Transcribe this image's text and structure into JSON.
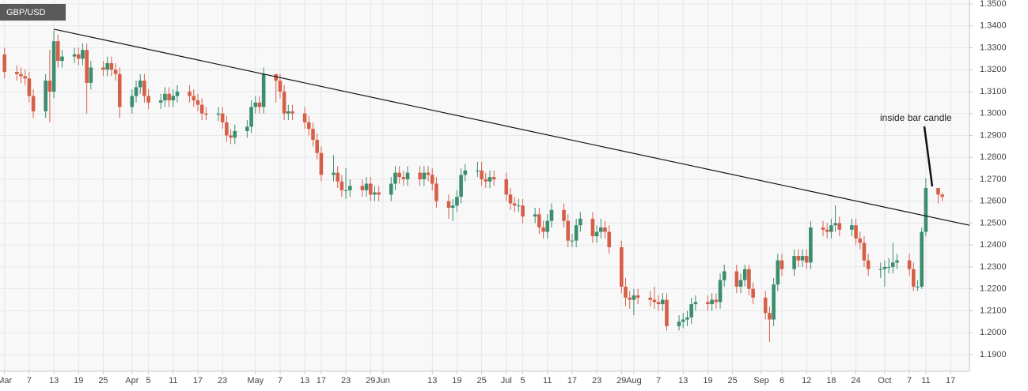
{
  "chart_data": {
    "type": "candlestick",
    "title": "GBP/USD",
    "annotation": "inside bar  candle",
    "up_color": "#3a8d6e",
    "down_color": "#d65f48",
    "grid": true,
    "xlim": [
      -1.1,
      234.6
    ],
    "ylim": [
      1.1824,
      1.3518
    ],
    "xticks": [
      {
        "value": 0,
        "label": "Mar"
      },
      {
        "value": 6,
        "label": "7"
      },
      {
        "value": 12,
        "label": "13"
      },
      {
        "value": 18,
        "label": "19"
      },
      {
        "value": 24,
        "label": "25"
      },
      {
        "value": 31,
        "label": "Apr"
      },
      {
        "value": 35,
        "label": "5"
      },
      {
        "value": 41,
        "label": "11"
      },
      {
        "value": 47,
        "label": "17"
      },
      {
        "value": 53,
        "label": "23"
      },
      {
        "value": 61,
        "label": "May"
      },
      {
        "value": 67,
        "label": "7"
      },
      {
        "value": 73,
        "label": "13"
      },
      {
        "value": 77,
        "label": "17"
      },
      {
        "value": 83,
        "label": "23"
      },
      {
        "value": 89,
        "label": "29"
      },
      {
        "value": 92,
        "label": "Jun"
      },
      {
        "value": 104,
        "label": "13"
      },
      {
        "value": 110,
        "label": "19"
      },
      {
        "value": 116,
        "label": "25"
      },
      {
        "value": 122,
        "label": "Jul"
      },
      {
        "value": 126,
        "label": "5"
      },
      {
        "value": 132,
        "label": "11"
      },
      {
        "value": 138,
        "label": "17"
      },
      {
        "value": 144,
        "label": "23"
      },
      {
        "value": 150,
        "label": "29"
      },
      {
        "value": 153,
        "label": "Aug"
      },
      {
        "value": 159,
        "label": "7"
      },
      {
        "value": 165,
        "label": "13"
      },
      {
        "value": 171,
        "label": "19"
      },
      {
        "value": 177,
        "label": "25"
      },
      {
        "value": 184,
        "label": "Sep"
      },
      {
        "value": 189,
        "label": "6"
      },
      {
        "value": 195,
        "label": "12"
      },
      {
        "value": 201,
        "label": "18"
      },
      {
        "value": 207,
        "label": "24"
      },
      {
        "value": 214,
        "label": "Oct"
      },
      {
        "value": 220,
        "label": "7"
      },
      {
        "value": 224,
        "label": "11"
      },
      {
        "value": 230,
        "label": "17"
      }
    ],
    "yticks": [
      {
        "value": 1.35,
        "label": "1.3500"
      },
      {
        "value": 1.34,
        "label": "1.3400"
      },
      {
        "value": 1.33,
        "label": "1.3300"
      },
      {
        "value": 1.32,
        "label": "1.3200"
      },
      {
        "value": 1.31,
        "label": "1.3100"
      },
      {
        "value": 1.3,
        "label": "1.3000"
      },
      {
        "value": 1.29,
        "label": "1.2900"
      },
      {
        "value": 1.28,
        "label": "1.2800"
      },
      {
        "value": 1.27,
        "label": "1.2700"
      },
      {
        "value": 1.26,
        "label": "1.2600"
      },
      {
        "value": 1.25,
        "label": "1.2500"
      },
      {
        "value": 1.24,
        "label": "1.2400"
      },
      {
        "value": 1.23,
        "label": "1.2300"
      },
      {
        "value": 1.22,
        "label": "1.2200"
      },
      {
        "value": 1.21,
        "label": "1.2100"
      },
      {
        "value": 1.2,
        "label": "1.2000"
      },
      {
        "value": 1.19,
        "label": "1.1900"
      }
    ],
    "trendline": {
      "x": [
        12,
        234.6
      ],
      "y": [
        1.3385,
        1.249
      ]
    },
    "x": [
      0,
      3,
      4,
      5,
      6,
      7,
      10,
      11,
      12,
      13,
      14,
      17,
      18,
      19,
      20,
      21,
      24,
      25,
      26,
      27,
      28,
      31,
      32,
      33,
      34,
      35,
      38,
      39,
      40,
      41,
      42,
      45,
      46,
      47,
      48,
      49,
      52,
      53,
      54,
      55,
      56,
      59,
      60,
      61,
      62,
      63,
      66,
      67,
      68,
      69,
      70,
      73,
      74,
      75,
      76,
      77,
      80,
      81,
      82,
      83,
      84,
      87,
      88,
      89,
      90,
      91,
      94,
      95,
      96,
      97,
      98,
      101,
      102,
      103,
      104,
      105,
      108,
      109,
      110,
      111,
      112,
      115,
      116,
      117,
      118,
      119,
      122,
      123,
      124,
      125,
      126,
      129,
      130,
      131,
      132,
      133,
      136,
      137,
      138,
      139,
      140,
      143,
      144,
      145,
      146,
      147,
      150,
      151,
      152,
      153,
      154,
      157,
      158,
      159,
      160,
      161,
      164,
      165,
      166,
      167,
      168,
      171,
      172,
      173,
      174,
      175,
      178,
      179,
      180,
      181,
      182,
      185,
      186,
      187,
      188,
      189,
      192,
      193,
      194,
      195,
      196,
      199,
      200,
      201,
      202,
      203,
      206,
      207,
      208,
      209,
      210,
      213,
      214,
      215,
      216,
      217,
      220,
      221,
      222,
      223,
      224,
      227,
      228
    ],
    "open": [
      1.327,
      1.319,
      1.318,
      1.317,
      1.316,
      1.308,
      1.301,
      1.315,
      1.31,
      1.333,
      1.324,
      1.326,
      1.327,
      1.325,
      1.329,
      1.314,
      1.321,
      1.32,
      1.323,
      1.32,
      1.318,
      1.303,
      1.308,
      1.312,
      1.315,
      1.308,
      1.305,
      1.306,
      1.309,
      1.306,
      1.308,
      1.31,
      1.308,
      1.306,
      1.304,
      1.3,
      1.2995,
      1.3,
      1.296,
      1.29,
      1.289,
      1.292,
      1.294,
      1.303,
      1.305,
      1.303,
      1.318,
      1.315,
      1.31,
      1.3,
      1.301,
      1.3,
      1.296,
      1.293,
      1.288,
      1.282,
      1.272,
      1.273,
      1.269,
      1.265,
      1.265,
      1.267,
      1.265,
      1.268,
      1.263,
      1.264,
      1.263,
      1.268,
      1.273,
      1.271,
      1.27,
      1.273,
      1.27,
      1.273,
      1.272,
      1.268,
      1.26,
      1.257,
      1.258,
      1.262,
      1.272,
      1.274,
      1.274,
      1.27,
      1.269,
      1.271,
      1.27,
      1.263,
      1.259,
      1.258,
      1.258,
      1.253,
      1.254,
      1.248,
      1.246,
      1.251,
      1.256,
      1.251,
      1.242,
      1.242,
      1.249,
      1.252,
      1.244,
      1.246,
      1.248,
      1.246,
      1.239,
      1.221,
      1.216,
      1.215,
      1.217,
      1.216,
      1.215,
      1.214,
      1.213,
      1.215,
      1.203,
      1.205,
      1.206,
      1.207,
      1.213,
      1.214,
      1.213,
      1.215,
      1.214,
      1.224,
      1.228,
      1.221,
      1.224,
      1.229,
      1.22,
      1.216,
      1.209,
      1.206,
      1.222,
      1.233,
      1.229,
      1.235,
      1.233,
      1.235,
      1.232,
      1.248,
      1.247,
      1.246,
      1.249,
      1.25,
      1.247,
      1.249,
      1.243,
      1.241,
      1.233,
      1.229,
      1.229,
      1.23,
      1.23,
      1.232,
      1.233,
      1.229,
      1.221,
      1.221,
      1.246,
      1.266,
      1.263
    ],
    "high": [
      1.33,
      1.322,
      1.321,
      1.32,
      1.319,
      1.311,
      1.318,
      1.329,
      1.338,
      1.336,
      1.329,
      1.33,
      1.33,
      1.332,
      1.332,
      1.324,
      1.324,
      1.326,
      1.326,
      1.323,
      1.321,
      1.311,
      1.315,
      1.318,
      1.318,
      1.311,
      1.309,
      1.312,
      1.312,
      1.311,
      1.313,
      1.313,
      1.311,
      1.309,
      1.307,
      1.303,
      1.303,
      1.303,
      1.299,
      1.293,
      1.295,
      1.297,
      1.306,
      1.308,
      1.308,
      1.321,
      1.318,
      1.318,
      1.313,
      1.304,
      1.304,
      1.303,
      1.299,
      1.296,
      1.291,
      1.285,
      1.281,
      1.276,
      1.272,
      1.275,
      1.27,
      1.27,
      1.271,
      1.271,
      1.267,
      1.267,
      1.271,
      1.276,
      1.276,
      1.274,
      1.276,
      1.276,
      1.276,
      1.276,
      1.275,
      1.271,
      1.263,
      1.261,
      1.265,
      1.275,
      1.277,
      1.278,
      1.278,
      1.273,
      1.274,
      1.274,
      1.273,
      1.266,
      1.262,
      1.261,
      1.261,
      1.257,
      1.257,
      1.251,
      1.254,
      1.259,
      1.259,
      1.254,
      1.245,
      1.252,
      1.255,
      1.255,
      1.249,
      1.252,
      1.251,
      1.249,
      1.242,
      1.225,
      1.219,
      1.22,
      1.22,
      1.219,
      1.221,
      1.217,
      1.218,
      1.218,
      1.208,
      1.209,
      1.21,
      1.216,
      1.217,
      1.217,
      1.218,
      1.218,
      1.227,
      1.231,
      1.231,
      1.227,
      1.231,
      1.231,
      1.223,
      1.219,
      1.212,
      1.225,
      1.236,
      1.236,
      1.238,
      1.238,
      1.238,
      1.238,
      1.251,
      1.251,
      1.25,
      1.252,
      1.258,
      1.253,
      1.252,
      1.252,
      1.246,
      1.244,
      1.236,
      1.232,
      1.233,
      1.234,
      1.241,
      1.236,
      1.236,
      1.232,
      1.224,
      1.248,
      1.2705,
      1.266,
      1.264
    ],
    "low": [
      1.316,
      1.315,
      1.314,
      1.313,
      1.305,
      1.298,
      1.298,
      1.296,
      1.307,
      1.321,
      1.321,
      1.323,
      1.322,
      1.322,
      1.3,
      1.311,
      1.317,
      1.317,
      1.317,
      1.315,
      1.298,
      1.3,
      1.305,
      1.309,
      1.305,
      1.302,
      1.302,
      1.303,
      1.303,
      1.303,
      1.305,
      1.305,
      1.303,
      1.301,
      1.297,
      1.297,
      1.2965,
      1.293,
      1.287,
      1.286,
      1.286,
      1.289,
      1.291,
      1.3,
      1.3,
      1.3,
      1.305,
      1.307,
      1.297,
      1.297,
      1.297,
      1.293,
      1.29,
      1.285,
      1.279,
      1.269,
      1.269,
      1.266,
      1.262,
      1.261,
      1.262,
      1.262,
      1.262,
      1.26,
      1.26,
      1.26,
      1.26,
      1.265,
      1.268,
      1.267,
      1.267,
      1.267,
      1.267,
      1.269,
      1.265,
      1.257,
      1.252,
      1.251,
      1.255,
      1.259,
      1.269,
      1.271,
      1.267,
      1.266,
      1.266,
      1.267,
      1.26,
      1.256,
      1.255,
      1.255,
      1.25,
      1.25,
      1.245,
      1.243,
      1.243,
      1.248,
      1.248,
      1.239,
      1.239,
      1.239,
      1.246,
      1.241,
      1.241,
      1.243,
      1.243,
      1.236,
      1.218,
      1.212,
      1.211,
      1.208,
      1.213,
      1.212,
      1.211,
      1.21,
      1.21,
      1.201,
      1.201,
      1.202,
      1.203,
      1.204,
      1.21,
      1.21,
      1.21,
      1.211,
      1.211,
      1.221,
      1.218,
      1.218,
      1.221,
      1.217,
      1.213,
      1.206,
      1.1958,
      1.203,
      1.219,
      1.226,
      1.226,
      1.23,
      1.23,
      1.229,
      1.229,
      1.244,
      1.243,
      1.243,
      1.246,
      1.244,
      1.244,
      1.24,
      1.238,
      1.23,
      1.226,
      1.225,
      1.221,
      1.227,
      1.227,
      1.229,
      1.226,
      1.219,
      1.219,
      1.22,
      1.244,
      1.259,
      1.26
    ],
    "close": [
      1.319,
      1.318,
      1.317,
      1.316,
      1.308,
      1.301,
      1.315,
      1.31,
      1.333,
      1.324,
      1.326,
      1.327,
      1.325,
      1.329,
      1.314,
      1.321,
      1.32,
      1.323,
      1.32,
      1.318,
      1.303,
      1.308,
      1.312,
      1.315,
      1.308,
      1.305,
      1.306,
      1.309,
      1.306,
      1.308,
      1.31,
      1.308,
      1.306,
      1.304,
      1.3,
      1.2995,
      1.3,
      1.296,
      1.29,
      1.289,
      1.292,
      1.294,
      1.303,
      1.305,
      1.303,
      1.318,
      1.315,
      1.31,
      1.3,
      1.301,
      1.3,
      1.296,
      1.293,
      1.288,
      1.282,
      1.272,
      1.273,
      1.269,
      1.265,
      1.265,
      1.267,
      1.265,
      1.268,
      1.263,
      1.264,
      1.263,
      1.268,
      1.273,
      1.271,
      1.27,
      1.273,
      1.27,
      1.273,
      1.272,
      1.268,
      1.26,
      1.257,
      1.258,
      1.262,
      1.272,
      1.274,
      1.274,
      1.27,
      1.269,
      1.271,
      1.27,
      1.263,
      1.259,
      1.258,
      1.258,
      1.253,
      1.254,
      1.248,
      1.246,
      1.251,
      1.256,
      1.251,
      1.242,
      1.242,
      1.249,
      1.252,
      1.244,
      1.246,
      1.248,
      1.246,
      1.239,
      1.221,
      1.216,
      1.215,
      1.217,
      1.216,
      1.215,
      1.214,
      1.213,
      1.215,
      1.203,
      1.205,
      1.206,
      1.207,
      1.213,
      1.214,
      1.213,
      1.215,
      1.214,
      1.224,
      1.228,
      1.221,
      1.224,
      1.229,
      1.22,
      1.216,
      1.209,
      1.206,
      1.222,
      1.233,
      1.229,
      1.235,
      1.233,
      1.235,
      1.232,
      1.248,
      1.247,
      1.246,
      1.249,
      1.25,
      1.247,
      1.249,
      1.243,
      1.241,
      1.233,
      1.229,
      1.229,
      1.23,
      1.23,
      1.232,
      1.233,
      1.229,
      1.221,
      1.221,
      1.246,
      1.266,
      1.263,
      1.262
    ]
  }
}
